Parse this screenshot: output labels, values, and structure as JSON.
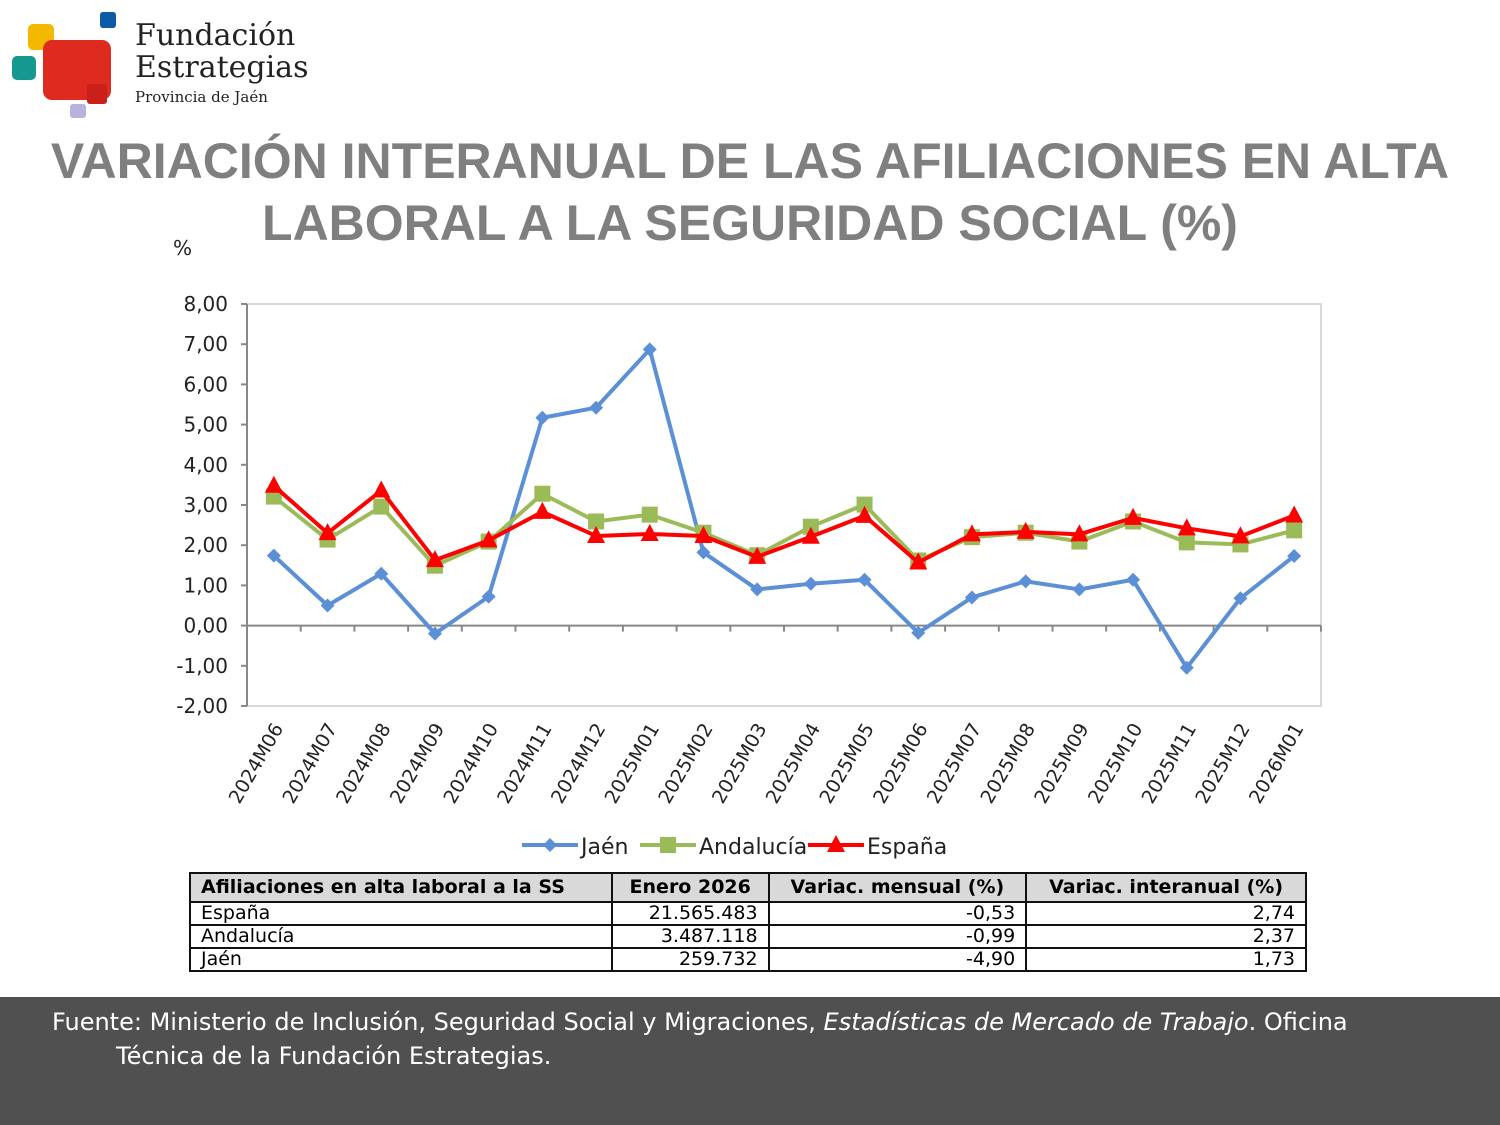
{
  "logo": {
    "line1": "Fundación",
    "line2": "Estrategias",
    "line3": "Provincia de Jaén"
  },
  "title": "VARIACIÓN INTERANUAL DE LAS AFILIACIONES EN ALTA LABORAL A LA SEGURIDAD SOCIAL (%)",
  "colors": {
    "jaen": "#5b8fd6",
    "andalucia": "#9bbb59",
    "espana": "#ff0000",
    "title": "#7f7f7f",
    "footer_bg": "#505050"
  },
  "chart_data": {
    "type": "line",
    "ylabel": "%",
    "ylim": [
      -2,
      8
    ],
    "yticks": [
      "8,00",
      "7,00",
      "6,00",
      "5,00",
      "4,00",
      "3,00",
      "2,00",
      "1,00",
      "0,00",
      "-1,00",
      "-2,00"
    ],
    "ytick_values": [
      8,
      7,
      6,
      5,
      4,
      3,
      2,
      1,
      0,
      -1,
      -2
    ],
    "grid": false,
    "legend_position": "bottom",
    "categories": [
      "2024M06",
      "2024M07",
      "2024M08",
      "2024M09",
      "2024M10",
      "2024M11",
      "2024M12",
      "2025M01",
      "2025M02",
      "2025M03",
      "2025M04",
      "2025M05",
      "2025M06",
      "2025M07",
      "2025M08",
      "2025M09",
      "2025M10",
      "2025M11",
      "2025M12",
      "2026M01"
    ],
    "series": [
      {
        "name": "Jaén",
        "marker": "diamond",
        "values": [
          1.74,
          0.5,
          1.29,
          -0.2,
          0.72,
          5.17,
          5.42,
          6.87,
          1.82,
          0.9,
          1.04,
          1.14,
          -0.18,
          0.7,
          1.1,
          0.9,
          1.14,
          -1.05,
          0.68,
          1.73
        ]
      },
      {
        "name": "Andalucía",
        "marker": "square",
        "values": [
          3.21,
          2.14,
          2.96,
          1.49,
          2.09,
          3.28,
          2.59,
          2.76,
          2.31,
          1.75,
          2.46,
          3.01,
          1.62,
          2.2,
          2.31,
          2.09,
          2.59,
          2.07,
          2.02,
          2.37
        ]
      },
      {
        "name": "España",
        "marker": "triangle",
        "values": [
          3.48,
          2.3,
          3.36,
          1.63,
          2.12,
          2.83,
          2.23,
          2.28,
          2.23,
          1.71,
          2.21,
          2.73,
          1.57,
          2.27,
          2.33,
          2.27,
          2.68,
          2.42,
          2.22,
          2.74
        ]
      }
    ]
  },
  "table": {
    "headers": [
      "Afiliaciones en alta laboral a la SS",
      "Enero 2026",
      "Variac. mensual (%)",
      "Variac. interanual (%)"
    ],
    "rows": [
      [
        "España",
        "21.565.483",
        "-0,53",
        "2,74"
      ],
      [
        "Andalucía",
        "3.487.118",
        "-0,99",
        "2,37"
      ],
      [
        "Jaén",
        "259.732",
        "-4,90",
        "1,73"
      ]
    ]
  },
  "footer": {
    "prefix": "Fuente: Ministerio de Inclusión, Seguridad Social y Migraciones, ",
    "italic": "Estadísticas de Mercado de Trabajo",
    "suffix": ". Oficina",
    "line2": "Técnica de la Fundación Estrategias."
  }
}
